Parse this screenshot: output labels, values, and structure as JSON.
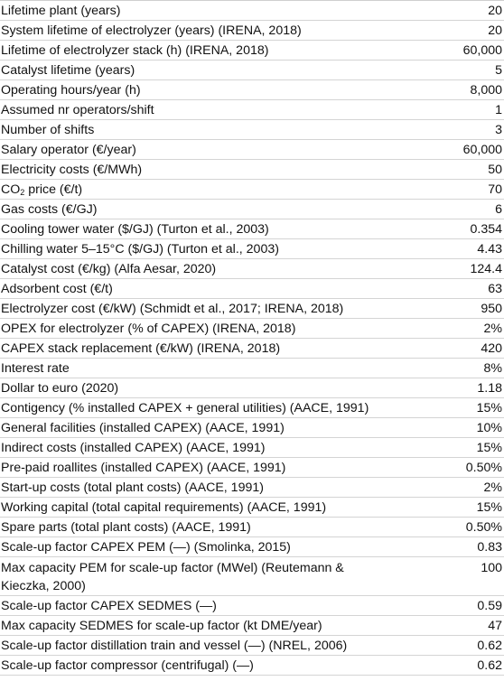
{
  "rows": [
    {
      "label": "Lifetime plant (years)",
      "value": "20"
    },
    {
      "label": "System lifetime of electrolyzer (years) (IRENA, 2018)",
      "value": "20"
    },
    {
      "label": "Lifetime of electrolyzer stack (h) (IRENA, 2018)",
      "value": "60,000"
    },
    {
      "label": "Catalyst lifetime (years)",
      "value": "5"
    },
    {
      "label": "Operating hours/year (h)",
      "value": "8,000"
    },
    {
      "label": "Assumed nr operators/shift",
      "value": "1"
    },
    {
      "label": "Number of shifts",
      "value": "3"
    },
    {
      "label": "Salary operator (€/year)",
      "value": "60,000"
    },
    {
      "label": "Electricity costs (€/MWh)",
      "value": "50"
    },
    {
      "label_pre": "CO",
      "label_sub": "2",
      "label_post": " price (€/t)",
      "value": "70"
    },
    {
      "label": "Gas costs (€/GJ)",
      "value": "6"
    },
    {
      "label": "Cooling tower water ($/GJ) (Turton et al., 2003)",
      "value": "0.354"
    },
    {
      "label": "Chilling water 5–15°C ($/GJ) (Turton et al., 2003)",
      "value": "4.43"
    },
    {
      "label": "Catalyst cost (€/kg) (Alfa Aesar, 2020)",
      "value": "124.4"
    },
    {
      "label": "Adsorbent cost (€/t)",
      "value": "63"
    },
    {
      "label": "Electrolyzer cost (€/kW) (Schmidt et al., 2017; IRENA, 2018)",
      "value": "950"
    },
    {
      "label": "OPEX for electrolyzer (% of CAPEX) (IRENA, 2018)",
      "value": "2%"
    },
    {
      "label": "CAPEX stack replacement (€/kW) (IRENA, 2018)",
      "value": "420"
    },
    {
      "label": "Interest rate",
      "value": "8%"
    },
    {
      "label": "Dollar to euro (2020)",
      "value": "1.18"
    },
    {
      "label": "Contigency (% installed CAPEX + general utilities) (AACE, 1991)",
      "value": "15%"
    },
    {
      "label": "General facilities (installed CAPEX) (AACE, 1991)",
      "value": "10%"
    },
    {
      "label": "Indirect costs (installed CAPEX) (AACE, 1991)",
      "value": "15%"
    },
    {
      "label": "Pre-paid roallites (installed CAPEX) (AACE, 1991)",
      "value": "0.50%"
    },
    {
      "label": "Start-up costs (total plant costs) (AACE, 1991)",
      "value": "2%"
    },
    {
      "label": "Working capital (total capital requirements) (AACE, 1991)",
      "value": "15%"
    },
    {
      "label": "Spare parts (total plant costs) (AACE, 1991)",
      "value": "0.50%"
    },
    {
      "label": "Scale-up factor CAPEX PEM (—) (Smolinka, 2015)",
      "value": "0.83"
    },
    {
      "label": "Max capacity PEM for scale-up factor (MWel) (Reutemann & Kieczka, 2000)",
      "value": "100"
    },
    {
      "label": "Scale-up factor CAPEX SEDMES (—)",
      "value": "0.59"
    },
    {
      "label": "Max capacity SEDMES for scale-up factor (kt DME/year)",
      "value": "47"
    },
    {
      "label": "Scale-up factor distillation train and vessel (—) (NREL, 2006)",
      "value": "0.62"
    },
    {
      "label": "Scale-up factor compressor (centrifugal) (—)",
      "value": "0.62"
    }
  ]
}
